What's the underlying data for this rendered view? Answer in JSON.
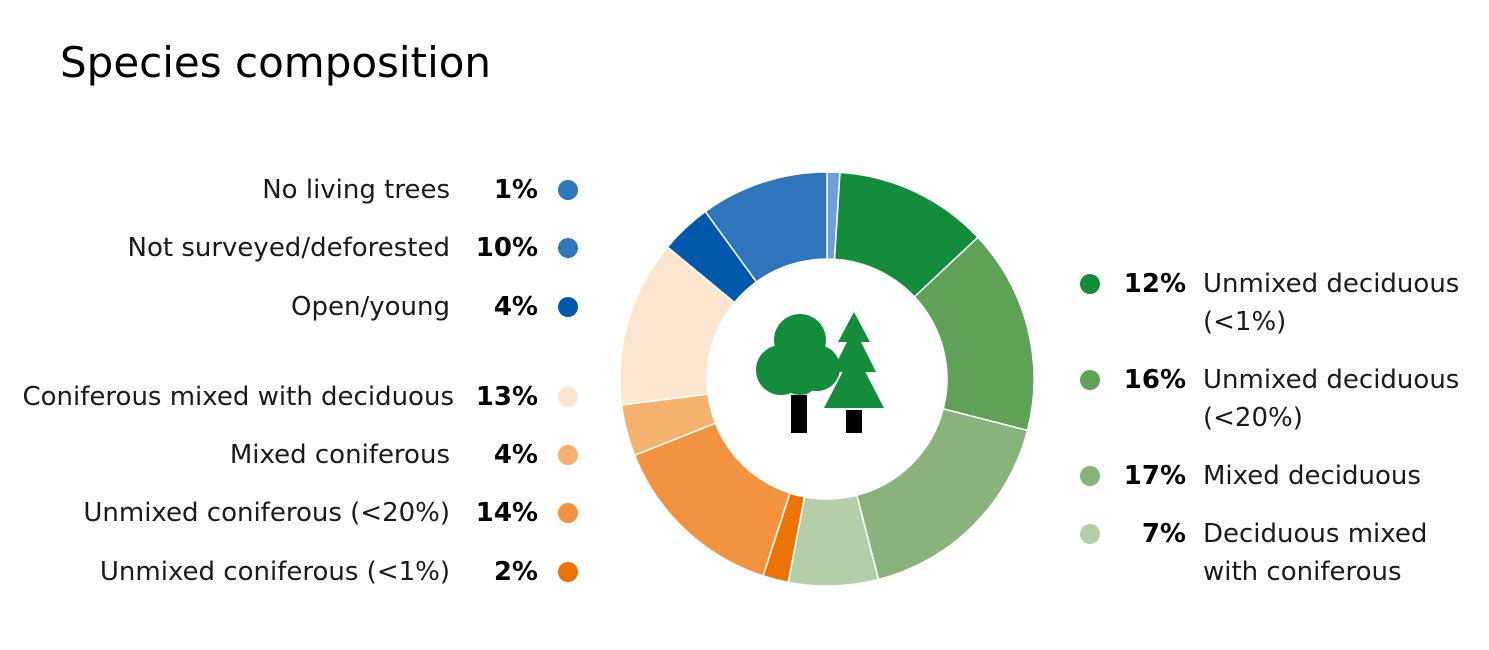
{
  "chart_data": {
    "type": "pie",
    "title": "Species composition",
    "donut": true,
    "center_icon": "trees-icon",
    "slices": [
      {
        "label": "No living trees",
        "value": 1,
        "pct_label": "1%",
        "color": "#6f9fd8"
      },
      {
        "label": "Unmixed deciduous (<1%)",
        "value": 12,
        "pct_label": "12%",
        "color": "#138d3c"
      },
      {
        "label": "Unmixed deciduous (<20%)",
        "value": 16,
        "pct_label": "16%",
        "color": "#5ea157"
      },
      {
        "label": "Mixed deciduous",
        "value": 17,
        "pct_label": "17%",
        "color": "#8ab37c"
      },
      {
        "label": "Deciduous mixed with coniferous",
        "value": 7,
        "pct_label": "7%",
        "color": "#b4ceaa"
      },
      {
        "label": "Unmixed coniferous (<1%)",
        "value": 2,
        "pct_label": "2%",
        "color": "#ec7406"
      },
      {
        "label": "Unmixed coniferous (<20%)",
        "value": 14,
        "pct_label": "14%",
        "color": "#f39340"
      },
      {
        "label": "Mixed coniferous",
        "value": 4,
        "pct_label": "4%",
        "color": "#f5b16e"
      },
      {
        "label": "Coniferous mixed with deciduous",
        "value": 13,
        "pct_label": "13%",
        "color": "#fde6cf"
      },
      {
        "label": "Open/young",
        "value": 4,
        "pct_label": "4%",
        "color": "#0058aa"
      },
      {
        "label": "Not surveyed/deforested",
        "value": 10,
        "pct_label": "10%",
        "color": "#2f75bc"
      }
    ],
    "legend_left": [
      {
        "label": "No living trees",
        "pct": "1%",
        "color": "#2f75bc"
      },
      {
        "label": "Not surveyed/deforested",
        "pct": "10%",
        "color": "#2f75bc"
      },
      {
        "label": "Open/young",
        "pct": "4%",
        "color": "#0058aa"
      },
      {
        "label": "Coniferous mixed with deciduous",
        "pct": "13%",
        "color": "#fde6cf"
      },
      {
        "label": "Mixed coniferous",
        "pct": "4%",
        "color": "#f5b16e"
      },
      {
        "label": "Unmixed coniferous (<20%)",
        "pct": "14%",
        "color": "#f39340"
      },
      {
        "label": "Unmixed coniferous (<1%)",
        "pct": "2%",
        "color": "#ec7406"
      }
    ],
    "legend_right": [
      {
        "pct": "12%",
        "line1": "Unmixed deciduous",
        "line2": "(<1%)",
        "color": "#138d3c"
      },
      {
        "pct": "16%",
        "line1": "Unmixed deciduous",
        "line2": "(<20%)",
        "color": "#5ea157"
      },
      {
        "pct": "17%",
        "line1": "Mixed deciduous",
        "line2": "",
        "color": "#8ab37c"
      },
      {
        "pct": "7%",
        "line1": "Deciduous mixed",
        "line2": "with coniferous",
        "color": "#b4ceaa"
      }
    ]
  }
}
